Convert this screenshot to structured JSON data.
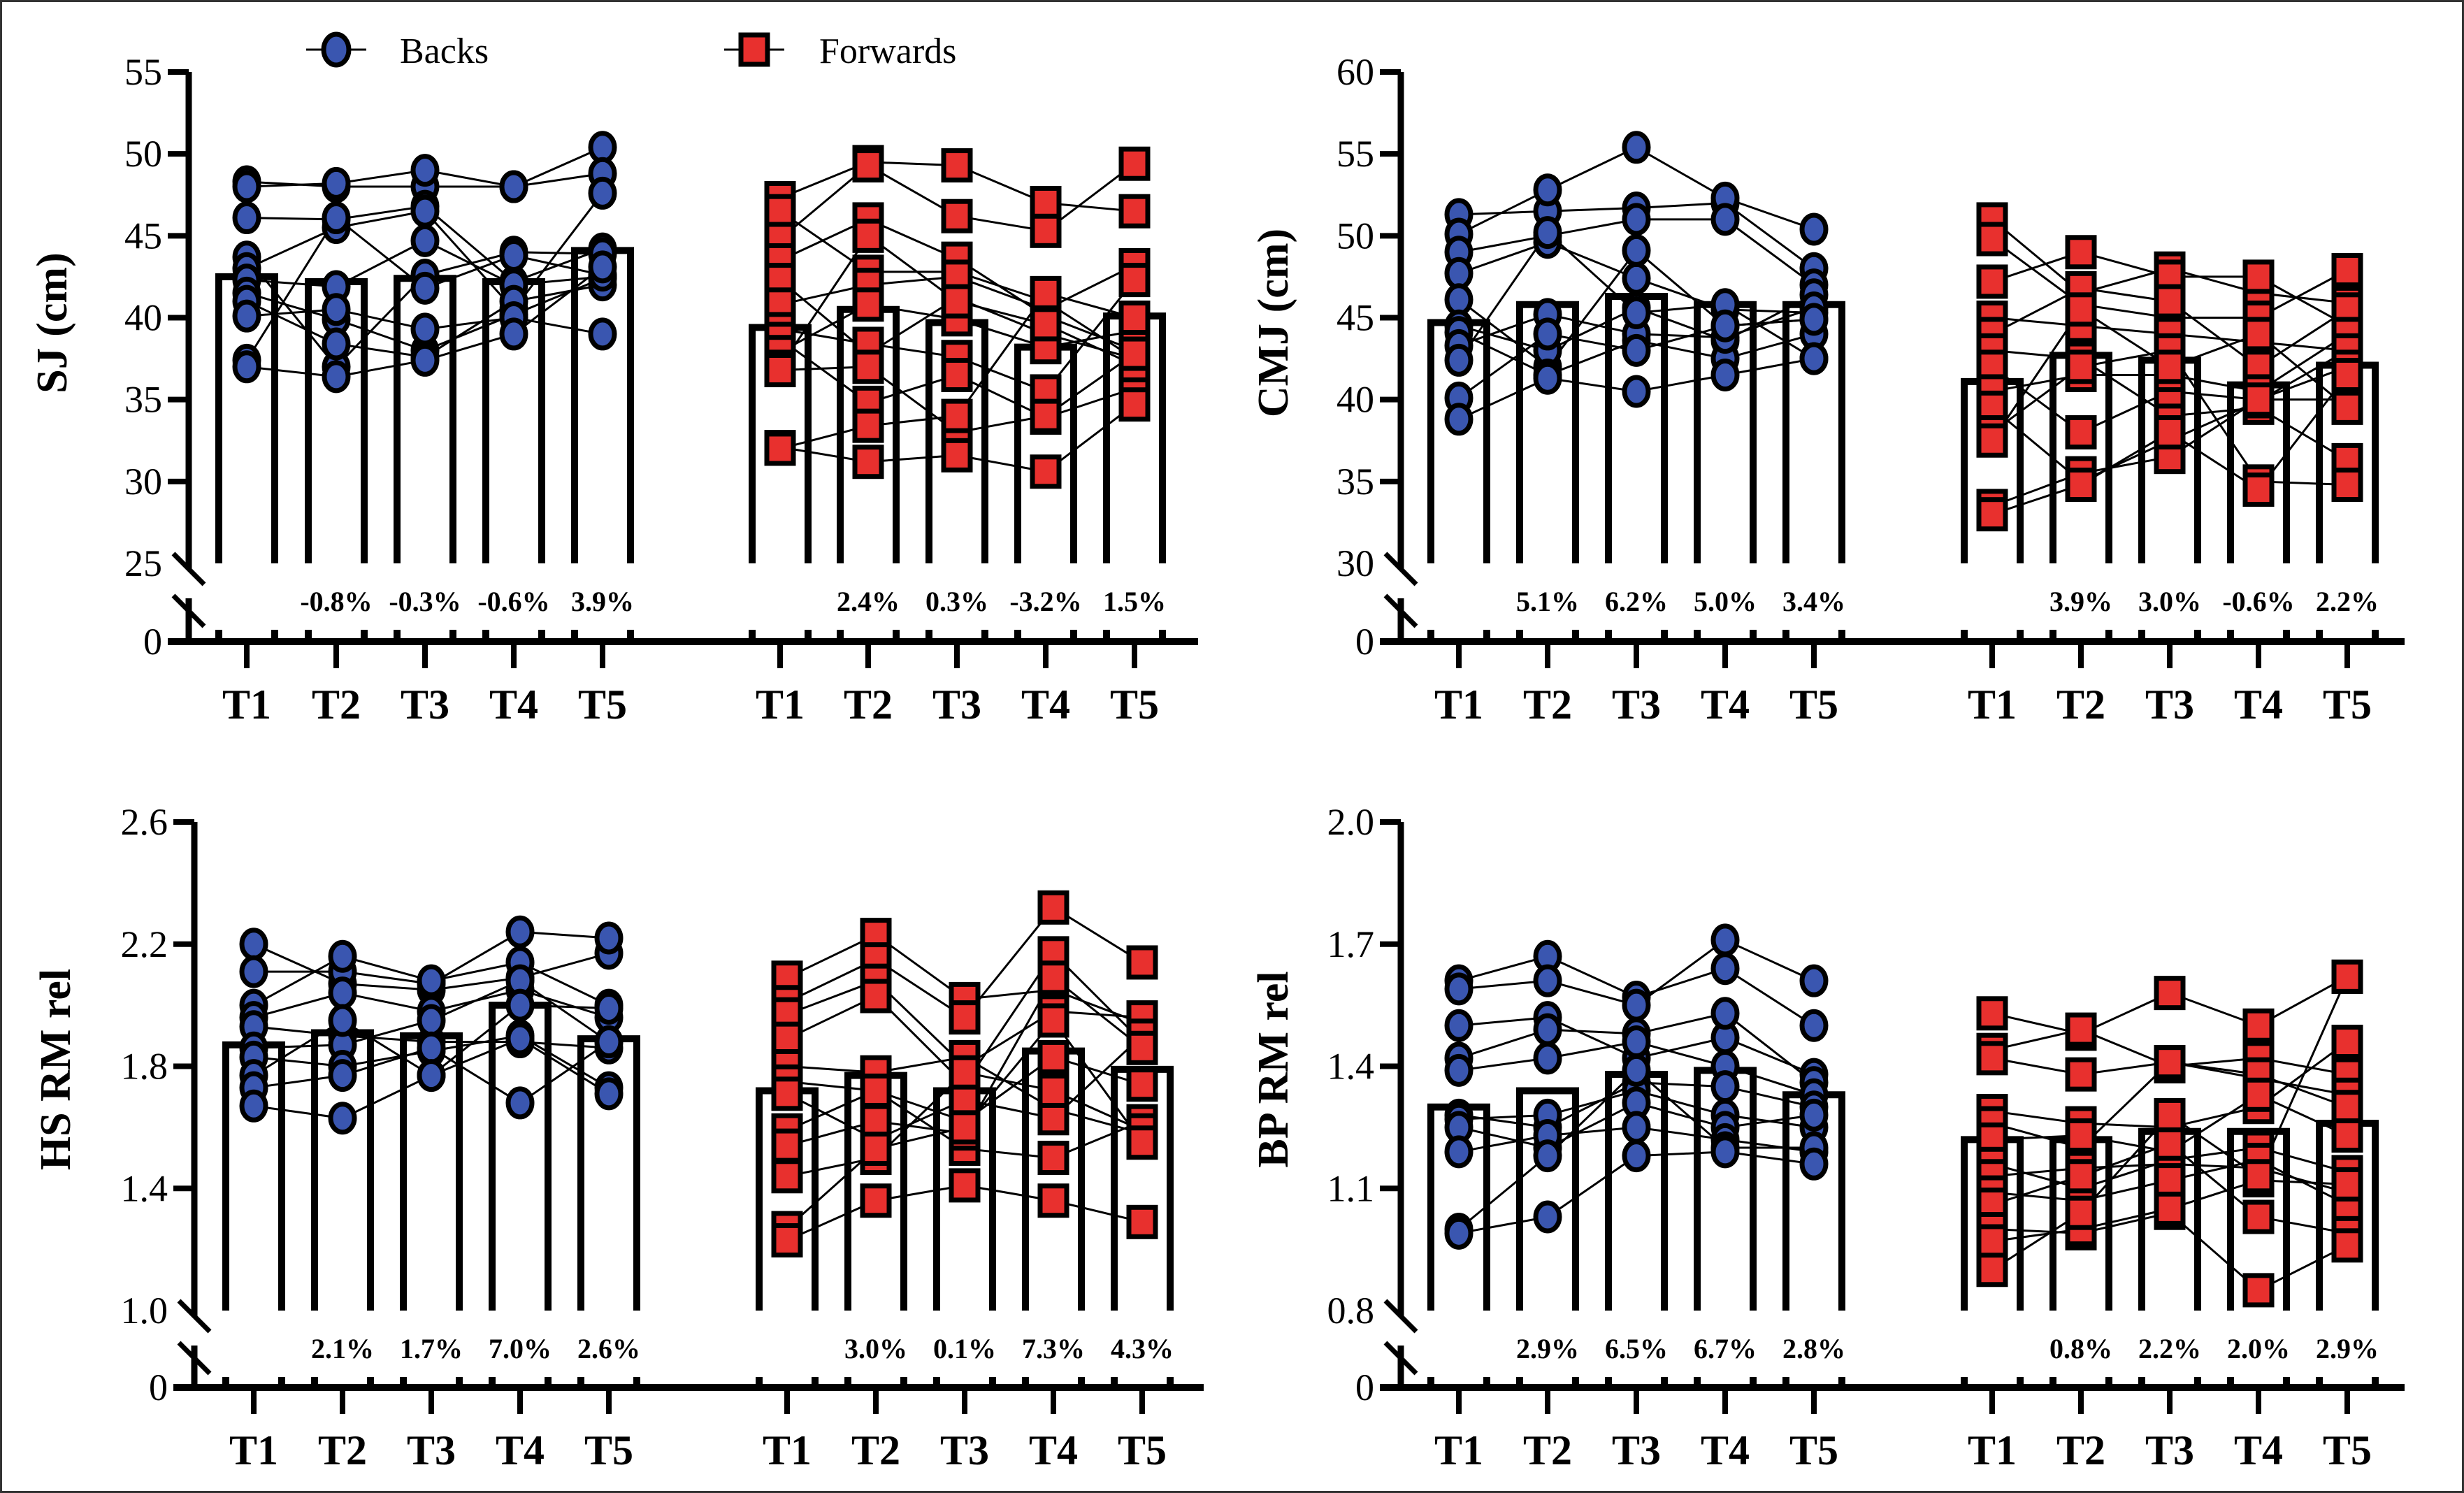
{
  "legend": {
    "items": [
      {
        "label": "Backs",
        "marker": "circle",
        "color": "#3a56b0"
      },
      {
        "label": "Forwards",
        "marker": "square",
        "color": "#e8302e"
      }
    ]
  },
  "chart_data": [
    {
      "type": "bar",
      "panel": "top-left",
      "ylabel": "SJ (cm)",
      "yticks": [
        "0",
        "25",
        "30",
        "35",
        "40",
        "45",
        "50",
        "55"
      ],
      "ylim": [
        25,
        55
      ],
      "axis_break": true,
      "categories": [
        "T1",
        "T2",
        "T3",
        "T4",
        "T5"
      ],
      "groups": [
        {
          "name": "Backs",
          "means": [
            42.5,
            42.2,
            42.4,
            42.2,
            44.1
          ],
          "pct_change": [
            "",
            "-0.8%",
            "-0.3%",
            "-0.6%",
            "3.9%"
          ],
          "subjects": [
            [
              48.3,
              48.0,
              48.0,
              48.0,
              50.4
            ],
            [
              48.0,
              48.2,
              49.0,
              48.0,
              48.8
            ],
            [
              46.1,
              46.0,
              46.8,
              42.2,
              44.2
            ],
            [
              43.7,
              37.0,
              42.6,
              44.0,
              43.9
            ],
            [
              43.0,
              45.5,
              46.5,
              40.5,
              47.6
            ],
            [
              42.3,
              41.9,
              44.7,
              42.0,
              42.5
            ],
            [
              41.5,
              39.9,
              38.0,
              40.2,
              42.4
            ],
            [
              41.0,
              38.4,
              37.6,
              41.0,
              42.0
            ],
            [
              40.1,
              40.5,
              39.3,
              40.0,
              39.0
            ],
            [
              37.4,
              46.1,
              41.8,
              43.8,
              42.6
            ],
            [
              37.0,
              36.4,
              37.4,
              39.0,
              43.1
            ]
          ]
        },
        {
          "name": "Forwards",
          "means": [
            39.4,
            40.5,
            39.7,
            38.2,
            40.1
          ],
          "pct_change": [
            "",
            "2.4%",
            "0.3%",
            "-3.2%",
            "1.5%"
          ],
          "subjects": [
            [
              47.3,
              49.5,
              49.3,
              47.0,
              46.5
            ],
            [
              46.5,
              42.8,
              42.8,
              41.0,
              37.5
            ],
            [
              44.8,
              49.3,
              46.2,
              45.3,
              49.4
            ],
            [
              43.5,
              46.0,
              43.6,
              40.1,
              38.0
            ],
            [
              42.3,
              37.8,
              41.2,
              39.0,
              37.5
            ],
            [
              40.8,
              42.0,
              42.5,
              40.5,
              43.2
            ],
            [
              39.3,
              38.4,
              37.6,
              35.5,
              42.3
            ],
            [
              38.7,
              34.8,
              36.5,
              33.9,
              35.7
            ],
            [
              37.9,
              40.8,
              39.9,
              38.2,
              39.2
            ],
            [
              37.0,
              45.0,
              41.0,
              39.6,
              37.1
            ],
            [
              36.8,
              37.0,
              33.0,
              34.0,
              37.8
            ],
            [
              32.1,
              31.2,
              31.6,
              30.6,
              34.7
            ],
            [
              32.0,
              33.4,
              34.0,
              41.5,
              40.0
            ]
          ]
        }
      ]
    },
    {
      "type": "bar",
      "panel": "top-right",
      "ylabel": "CMJ (cm)",
      "yticks": [
        "0",
        "30",
        "35",
        "40",
        "45",
        "50",
        "55",
        "60"
      ],
      "ylim": [
        30,
        60
      ],
      "axis_break": true,
      "categories": [
        "T1",
        "T2",
        "T3",
        "T4",
        "T5"
      ],
      "groups": [
        {
          "name": "Backs",
          "means": [
            44.7,
            45.8,
            46.3,
            45.8,
            45.8
          ],
          "pct_change": [
            "",
            "5.1%",
            "6.2%",
            "5.0%",
            "3.4%"
          ],
          "subjects": [
            [
              51.3,
              51.5,
              51.7,
              52.0,
              48.0
            ],
            [
              50.1,
              52.8,
              55.4,
              52.3,
              50.4
            ],
            [
              49.0,
              50.0,
              51.0,
              51.0,
              47.0
            ],
            [
              47.7,
              49.6,
              47.4,
              45.5,
              45.3
            ],
            [
              46.1,
              42.0,
              49.1,
              44.5,
              44.9
            ],
            [
              44.5,
              43.0,
              45.6,
              43.6,
              46.4
            ],
            [
              44.1,
              41.5,
              43.6,
              42.5,
              44.0
            ],
            [
              43.3,
              45.2,
              44.0,
              43.8,
              45.6
            ],
            [
              42.4,
              50.2,
              45.3,
              45.8,
              42.5
            ],
            [
              40.1,
              44.0,
              43.0,
              44.5,
              44.9
            ],
            [
              38.8,
              41.3,
              40.5,
              41.5,
              42.5
            ]
          ]
        },
        {
          "name": "Forwards",
          "means": [
            41.1,
            42.7,
            42.4,
            40.9,
            42.1
          ],
          "pct_change": [
            "",
            "3.9%",
            "3.0%",
            "-0.6%",
            "2.2%"
          ],
          "subjects": [
            [
              51.0,
              46.5,
              48.0,
              46.5,
              45.9
            ],
            [
              49.8,
              45.8,
              45.0,
              45.0,
              47.9
            ],
            [
              47.2,
              49.0,
              47.5,
              47.5,
              44.5
            ],
            [
              45.0,
              44.5,
              44.0,
              43.5,
              43.0
            ],
            [
              44.0,
              46.8,
              46.0,
              42.0,
              45.5
            ],
            [
              43.0,
              42.5,
              39.0,
              39.5,
              36.3
            ],
            [
              42.0,
              38.0,
              40.5,
              40.0,
              40.0
            ],
            [
              40.5,
              41.5,
              41.5,
              40.5,
              44.0
            ],
            [
              39.5,
              35.0,
              37.5,
              39.9,
              43.0
            ],
            [
              38.0,
              42.0,
              43.0,
              35.0,
              34.8
            ],
            [
              37.5,
              45.5,
              42.0,
              44.0,
              39.5
            ],
            [
              33.5,
              35.5,
              36.5,
              40.0,
              42.0
            ],
            [
              33.0,
              34.8,
              38.0,
              34.5,
              41.5
            ]
          ]
        }
      ]
    },
    {
      "type": "bar",
      "panel": "bottom-left",
      "ylabel": "HS RM rel",
      "yticks": [
        "0",
        "1.0",
        "1.4",
        "1.8",
        "2.2",
        "2.6"
      ],
      "ylim": [
        1.0,
        2.6
      ],
      "axis_break": true,
      "categories": [
        "T1",
        "T2",
        "T3",
        "T4",
        "T5"
      ],
      "groups": [
        {
          "name": "Backs",
          "means": [
            1.87,
            1.91,
            1.9,
            2.0,
            1.89
          ],
          "pct_change": [
            "",
            "2.1%",
            "1.7%",
            "7.0%",
            "2.6%"
          ],
          "subjects": [
            [
              2.2,
              2.07,
              2.05,
              2.09,
              2.17
            ],
            [
              2.11,
              2.11,
              2.07,
              2.24,
              2.22
            ],
            [
              2.0,
              2.16,
              2.08,
              2.14,
              2.0
            ],
            [
              1.96,
              2.04,
              1.98,
              2.05,
              1.96
            ],
            [
              1.93,
              1.9,
              1.88,
              1.88,
              1.86
            ],
            [
              1.86,
              1.87,
              1.95,
              2.08,
              1.88
            ],
            [
              1.83,
              1.8,
              1.85,
              1.9,
              1.73
            ],
            [
              1.77,
              1.95,
              1.77,
              2.0,
              1.99
            ],
            [
              1.73,
              1.77,
              1.86,
              1.68,
              1.88
            ],
            [
              1.67,
              1.63,
              1.77,
              1.89,
              1.71
            ]
          ]
        },
        {
          "name": "Forwards",
          "means": [
            1.72,
            1.77,
            1.72,
            1.85,
            1.79
          ],
          "pct_change": [
            "",
            "3.0%",
            "0.1%",
            "7.3%",
            "4.3%"
          ],
          "subjects": [
            [
              2.09,
              2.23,
              2.02,
              2.05,
              1.94
            ],
            [
              2.01,
              2.15,
              1.96,
              2.32,
              2.14
            ],
            [
              1.97,
              2.08,
              1.8,
              1.98,
              1.96
            ],
            [
              1.89,
              2.03,
              1.74,
              2.17,
              1.88
            ],
            [
              1.8,
              1.78,
              1.83,
              1.66,
              1.58
            ],
            [
              1.75,
              1.72,
              1.62,
              1.83,
              1.74
            ],
            [
              1.71,
              1.56,
              1.69,
              1.63,
              1.9
            ],
            [
              1.59,
              1.72,
              1.53,
              1.5,
              1.62
            ],
            [
              1.54,
              1.62,
              1.58,
              2.09,
              1.86
            ],
            [
              1.44,
              1.5,
              1.78,
              1.72,
              1.59
            ],
            [
              1.27,
              1.53,
              1.6,
              1.95,
              1.55
            ],
            [
              1.23,
              1.36,
              1.41,
              1.36,
              1.29
            ]
          ]
        }
      ]
    },
    {
      "type": "bar",
      "panel": "bottom-right",
      "ylabel": "BP RM rel",
      "yticks": [
        "0",
        "0.8",
        "1.1",
        "1.4",
        "1.7",
        "2.0"
      ],
      "ylim": [
        0.8,
        2.0
      ],
      "axis_break": true,
      "categories": [
        "T1",
        "T2",
        "T3",
        "T4",
        "T5"
      ],
      "groups": [
        {
          "name": "Backs",
          "means": [
            1.3,
            1.34,
            1.38,
            1.39,
            1.33
          ],
          "pct_change": [
            "",
            "2.9%",
            "6.5%",
            "6.7%",
            "2.8%"
          ],
          "subjects": [
            [
              1.61,
              1.67,
              1.57,
              1.64,
              1.5
            ],
            [
              1.59,
              1.61,
              1.55,
              1.71,
              1.61
            ],
            [
              1.5,
              1.52,
              1.42,
              1.47,
              1.38
            ],
            [
              1.42,
              1.49,
              1.48,
              1.53,
              1.36
            ],
            [
              1.39,
              1.42,
              1.46,
              1.4,
              1.33
            ],
            [
              1.28,
              1.25,
              1.36,
              1.35,
              1.3
            ],
            [
              1.27,
              1.28,
              1.34,
              1.28,
              1.25
            ],
            [
              1.25,
              1.2,
              1.31,
              1.25,
              1.28
            ],
            [
              1.19,
              1.23,
              1.25,
              1.22,
              1.19
            ],
            [
              1.0,
              1.18,
              1.39,
              1.2,
              1.2
            ],
            [
              0.99,
              1.03,
              1.18,
              1.19,
              1.16
            ]
          ]
        },
        {
          "name": "Forwards",
          "means": [
            1.22,
            1.22,
            1.24,
            1.24,
            1.26
          ],
          "pct_change": [
            "",
            "0.8%",
            "2.2%",
            "2.0%",
            "2.9%"
          ],
          "subjects": [
            [
              1.53,
              1.48,
              1.58,
              1.5,
              1.62
            ],
            [
              1.44,
              1.49,
              1.4,
              1.42,
              1.38
            ],
            [
              1.42,
              1.38,
              1.41,
              1.37,
              1.33
            ],
            [
              1.29,
              1.26,
              1.25,
              1.3,
              1.46
            ],
            [
              1.26,
              1.2,
              1.41,
              1.38,
              1.3
            ],
            [
              1.22,
              1.23,
              1.19,
              1.33,
              1.23
            ],
            [
              1.16,
              1.1,
              1.17,
              1.2,
              1.14
            ],
            [
              1.13,
              1.15,
              1.16,
              1.15,
              1.09
            ],
            [
              1.09,
              1.07,
              1.12,
              1.17,
              1.06
            ],
            [
              1.06,
              1.13,
              1.21,
              1.03,
              0.99
            ],
            [
              1.0,
              0.99,
              1.04,
              0.85,
              0.96
            ],
            [
              0.97,
              1.0,
              1.05,
              1.12,
              1.11
            ],
            [
              0.9,
              1.04,
              1.28,
              1.13,
              1.62
            ]
          ]
        }
      ]
    }
  ]
}
